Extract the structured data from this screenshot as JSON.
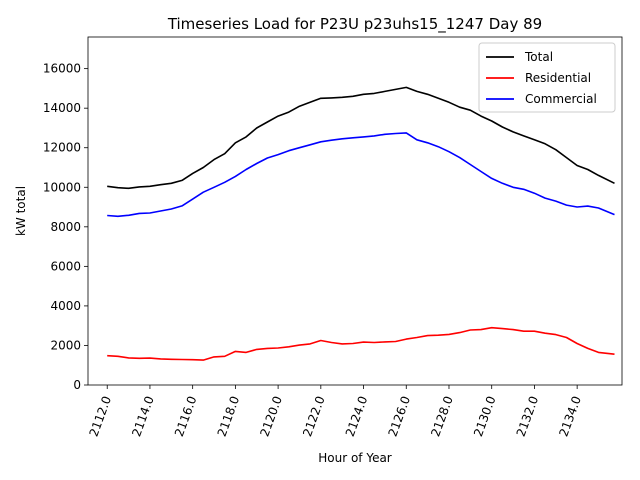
{
  "chart_data": {
    "type": "line",
    "title": "Timeseries Load for P23U p23uhs15_1247  Day 89",
    "xlabel": "Hour of Year",
    "ylabel": "kW total",
    "xlim": [
      2111.1,
      2136.1
    ],
    "ylim": [
      0,
      17600
    ],
    "xticks": [
      2112,
      2114,
      2116,
      2118,
      2120,
      2122,
      2124,
      2126,
      2128,
      2130,
      2132,
      2134
    ],
    "xtick_labels": [
      "2112.0",
      "2114.0",
      "2116.0",
      "2118.0",
      "2120.0",
      "2122.0",
      "2124.0",
      "2126.0",
      "2128.0",
      "2130.0",
      "2132.0",
      "2134.0"
    ],
    "yticks": [
      0,
      2000,
      4000,
      6000,
      8000,
      10000,
      12000,
      14000,
      16000
    ],
    "ytick_labels": [
      "0",
      "2000",
      "4000",
      "6000",
      "8000",
      "10000",
      "12000",
      "14000",
      "16000"
    ],
    "grid": false,
    "legend_position": "top-right",
    "x": [
      2112.0,
      2112.5,
      2113.0,
      2113.5,
      2114.0,
      2114.5,
      2115.0,
      2115.5,
      2116.0,
      2116.5,
      2117.0,
      2117.5,
      2118.0,
      2118.5,
      2119.0,
      2119.5,
      2120.0,
      2120.5,
      2121.0,
      2121.5,
      2122.0,
      2122.5,
      2123.0,
      2123.5,
      2124.0,
      2124.5,
      2125.0,
      2125.5,
      2126.0,
      2126.5,
      2127.0,
      2127.5,
      2128.0,
      2128.5,
      2129.0,
      2129.5,
      2130.0,
      2130.5,
      2131.0,
      2131.5,
      2132.0,
      2132.5,
      2133.0,
      2133.5,
      2134.0,
      2134.5,
      2135.0,
      2135.75
    ],
    "series": [
      {
        "name": "Total",
        "color": "#000000",
        "values": [
          10050,
          9980,
          9950,
          10020,
          10050,
          10130,
          10200,
          10350,
          10700,
          11000,
          11400,
          11700,
          12250,
          12550,
          13000,
          13300,
          13600,
          13800,
          14100,
          14300,
          14500,
          14520,
          14550,
          14600,
          14700,
          14750,
          14850,
          14950,
          15050,
          14850,
          14700,
          14500,
          14300,
          14050,
          13900,
          13600,
          13350,
          13050,
          12800,
          12600,
          12400,
          12200,
          11900,
          11500,
          11100,
          10900,
          10600,
          10200
        ]
      },
      {
        "name": "Residential",
        "color": "#ff0000",
        "values": [
          1480,
          1450,
          1370,
          1350,
          1360,
          1320,
          1300,
          1290,
          1280,
          1260,
          1420,
          1450,
          1700,
          1650,
          1800,
          1850,
          1870,
          1930,
          2020,
          2080,
          2250,
          2150,
          2080,
          2100,
          2170,
          2150,
          2180,
          2200,
          2320,
          2400,
          2500,
          2520,
          2560,
          2650,
          2780,
          2800,
          2900,
          2850,
          2800,
          2720,
          2720,
          2620,
          2550,
          2400,
          2100,
          1850,
          1650,
          1560
        ]
      },
      {
        "name": "Commercial",
        "color": "#0000ff",
        "values": [
          8570,
          8530,
          8580,
          8680,
          8700,
          8800,
          8900,
          9060,
          9400,
          9750,
          10000,
          10250,
          10550,
          10900,
          11200,
          11480,
          11650,
          11850,
          12000,
          12150,
          12300,
          12380,
          12450,
          12500,
          12550,
          12600,
          12680,
          12720,
          12750,
          12400,
          12250,
          12050,
          11800,
          11500,
          11150,
          10800,
          10450,
          10200,
          10000,
          9900,
          9700,
          9450,
          9300,
          9100,
          9000,
          9050,
          8950,
          8620
        ]
      }
    ]
  }
}
